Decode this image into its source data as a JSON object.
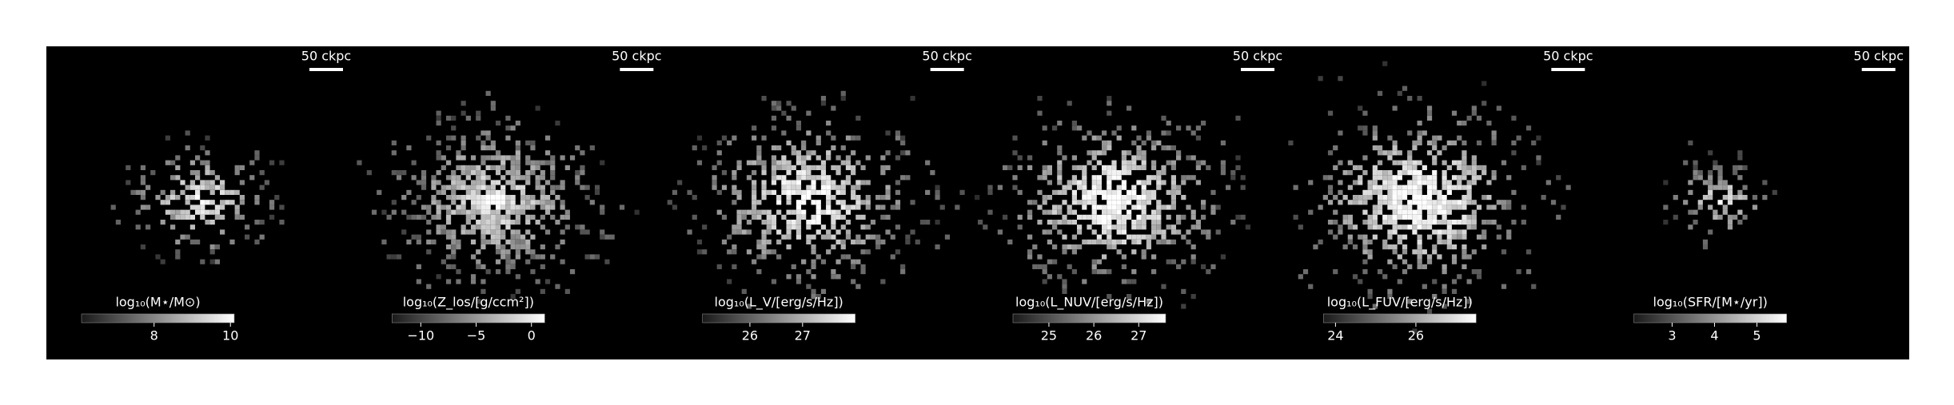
{
  "chart_data": [
    {
      "type": "image",
      "colorbar_label": "log₁₀(M⋆/M⊙)",
      "clim": [
        6.1,
        10.1
      ],
      "cticks": [
        8,
        10
      ],
      "scalebar_label": "50 ckpc"
    },
    {
      "type": "image",
      "colorbar_label": "log₁₀(Z_los/[g/ccm²])",
      "clim": [
        -12.6,
        1.2
      ],
      "cticks": [
        {
          "value": -10,
          "label": "−10"
        },
        {
          "value": -5,
          "label": "−5"
        },
        0
      ],
      "scalebar_label": "50 ckpc"
    },
    {
      "type": "image",
      "colorbar_label": "log₁₀(L_V/[erg/s/Hz])",
      "clim": [
        25.1,
        28.0
      ],
      "cticks": [
        26,
        27
      ],
      "scalebar_label": "50 ckpc"
    },
    {
      "type": "image",
      "colorbar_label": "log₁₀(L_NUV/[erg/s/Hz])",
      "clim": [
        24.2,
        27.6
      ],
      "cticks": [
        25,
        26,
        27
      ],
      "scalebar_label": "50 ckpc"
    },
    {
      "type": "image",
      "colorbar_label": "log₁₀(L_FUV/[erg/s/Hz])",
      "clim": [
        23.7,
        27.5
      ],
      "cticks": [
        24,
        26
      ],
      "scalebar_label": "50 ckpc"
    },
    {
      "type": "image",
      "colorbar_label": "log₁₀(SFR/[M⋆/yr])",
      "clim": [
        2.1,
        5.7
      ],
      "cticks": [
        3,
        4,
        5
      ],
      "scalebar_label": "50 ckpc"
    }
  ]
}
